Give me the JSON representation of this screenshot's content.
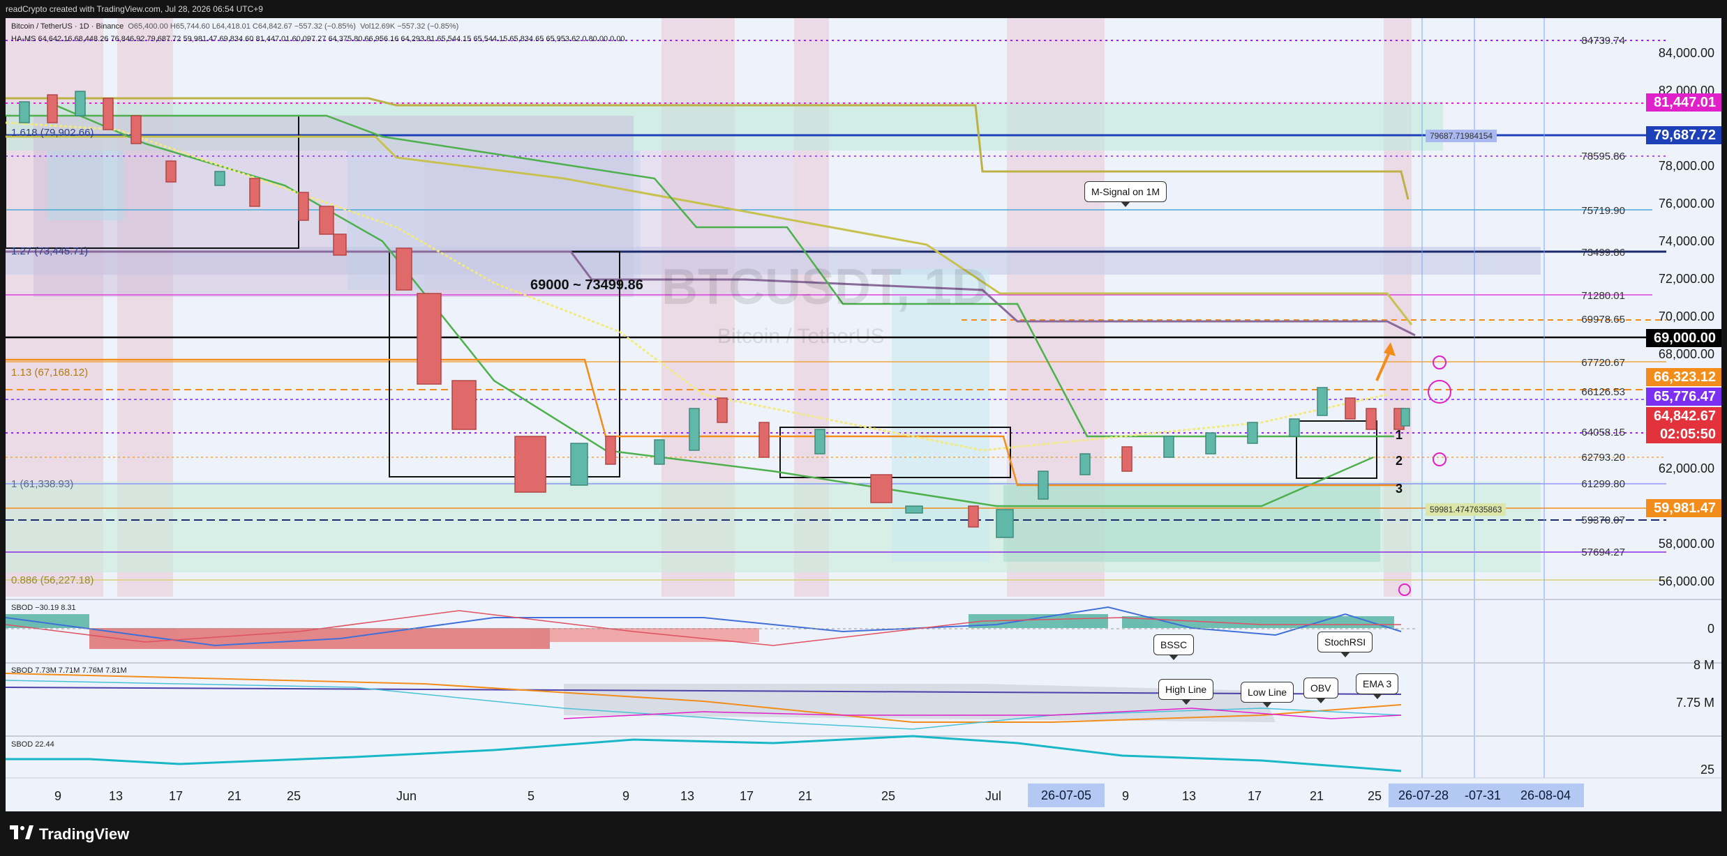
{
  "header": {
    "caption": "readCrypto created with TradingView.com, Jul 28, 2026 06:54 UTC+9"
  },
  "legend": {
    "symbol_line": "Bitcoin / TetherUS · 1D · Binance",
    "ohlc": "O65,400.00  H65,744.60  L64,418.01  C64,842.67  −557.32 (−0.85%)",
    "vol": "Vol12.69K  −557.32 (−0.85%)",
    "ha_ms": "HA-MS  64,642.16  68,448.26  76,846.92  79,687.72  59,981.47  69,834.60  81,447.01  60,097.27  64,375.80  66,956.16  64,293.81  65,544.15  65,544.15  65,834.65  65,953.62  0  80.00  0.00",
    "sbod1": "SBOD  −30.19  8.31",
    "sbod2": "SBOD  7.73M  7.71M  7.76M  7.81M",
    "sbod3": "SBOD  22.44"
  },
  "watermark": {
    "symbol": "BTCUSDT, 1D",
    "name": "Bitcoin / TetherUS"
  },
  "annotations": {
    "range_text": "69000 ~ 73499.86",
    "m_signal": "M-Signal on 1M",
    "bssc": "BSSC",
    "stochrsi": "StochRSI",
    "high_line": "High Line",
    "low_line": "Low Line",
    "obv": "OBV",
    "ema3": "EMA 3",
    "fib_1618": "1.618 (79,902.66)",
    "fib_127": "1.27 (73,445.71)",
    "fib_113": "1.13 (67,168.12)",
    "fib_1": "1 (61,338.93)",
    "fib_0886": "0.886 (56,227.18)",
    "num1": "1",
    "num2": "2",
    "num3": "3",
    "box_label1": "79687.71984154",
    "box_label2": "59981.4747635863"
  },
  "y_axis": {
    "ticks": [
      "84,000.00",
      "82,000.00",
      "78,000.00",
      "76,000.00",
      "74,000.00",
      "72,000.00",
      "70,000.00",
      "68,000.00",
      "62,000.00",
      "58,000.00",
      "56,000.00"
    ],
    "level_labels": [
      "84739.74",
      "78595.86",
      "75719.90",
      "73499.86",
      "71280.01",
      "69978.65",
      "67720.67",
      "66126.53",
      "64058.15",
      "62793.20",
      "61299.80",
      "59370.07",
      "57694.27"
    ],
    "price_boxes": [
      {
        "label": "81,447.01",
        "color": "#e020c8"
      },
      {
        "label": "79,687.72",
        "color": "#1d3fb8"
      },
      {
        "label": "69,000.00",
        "color": "#000000"
      },
      {
        "label": "66,323.12",
        "color": "#f28c1a"
      },
      {
        "label": "65,776.47",
        "color": "#7b2ff2"
      },
      {
        "label": "64,842.67",
        "color": "#e2323c"
      },
      {
        "label": "02:05:50",
        "color": "#e2323c"
      },
      {
        "label": "59,981.47",
        "color": "#f28c1a"
      }
    ],
    "osc1_ticks": [
      "0"
    ],
    "osc2_ticks": [
      "8 M",
      "7.75 M"
    ],
    "osc3_ticks": [
      "25"
    ]
  },
  "x_axis": {
    "labels": [
      "9",
      "13",
      "17",
      "21",
      "25",
      "Jun",
      "5",
      "9",
      "13",
      "17",
      "21",
      "25",
      "Jul",
      "9",
      "13",
      "17",
      "21",
      "25",
      "-07-31",
      "9"
    ],
    "highlights": [
      "26-07-05",
      "26-07-28",
      "26-08-04"
    ]
  },
  "footer": {
    "brand": "TradingView"
  },
  "colors": {
    "background": "#eef3fb",
    "up": "#5fb8a8",
    "down": "#e06a6a",
    "accent_orange": "#f28c1a"
  }
}
